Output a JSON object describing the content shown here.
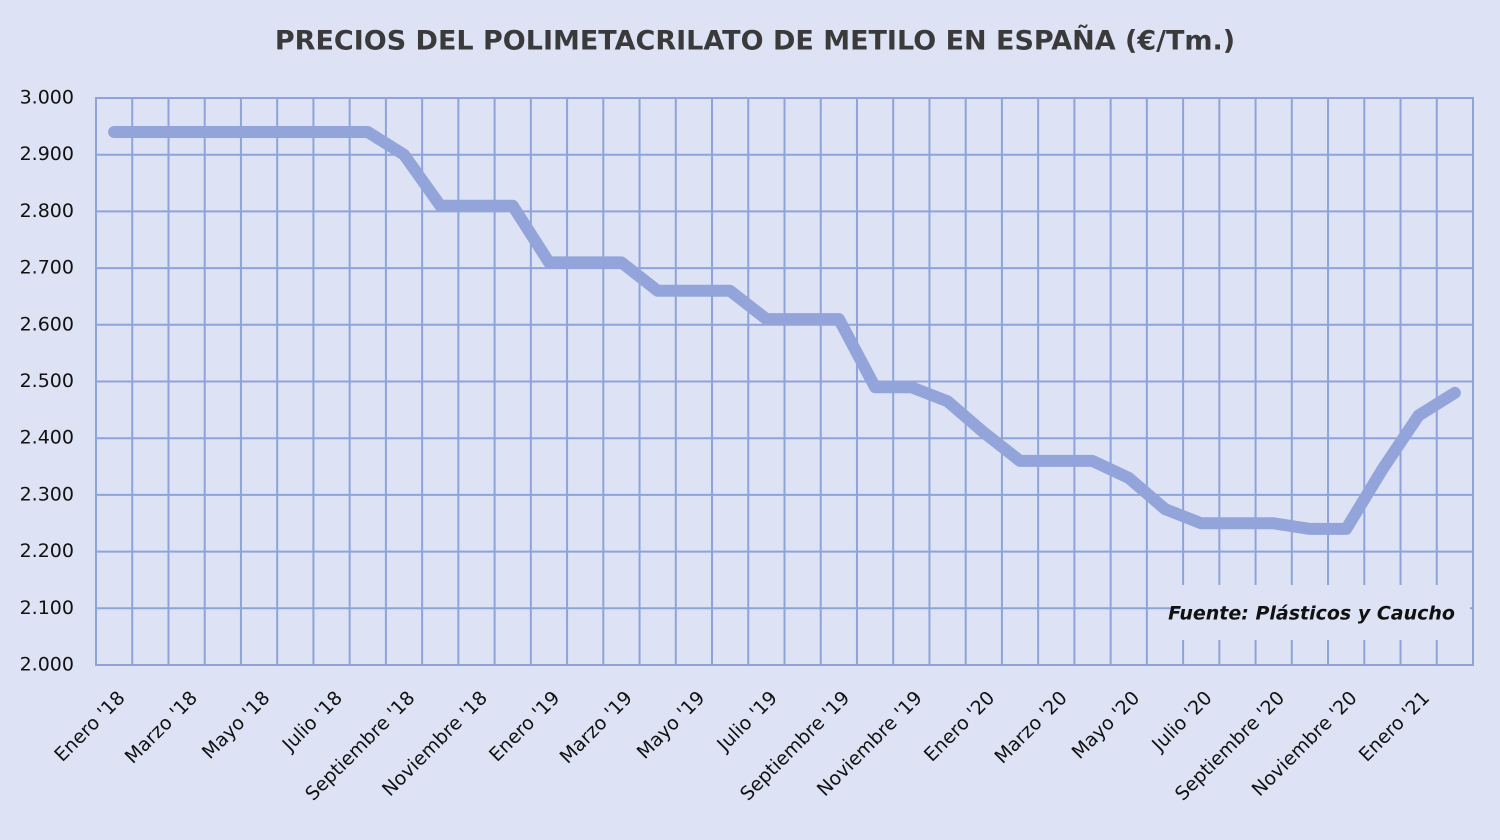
{
  "chart_data": {
    "type": "line",
    "title": "PRECIOS DEL POLIMETACRILATO DE METILO EN ESPAÑA  (€/Tm.)",
    "annotation": "Fuente: Plásticos y Caucho",
    "categories": [
      "Enero '18",
      null,
      "Marzo '18",
      null,
      "Mayo '18",
      null,
      "Julio '18",
      null,
      "Septiembre '18",
      null,
      "Noviembre '18",
      null,
      "Enero '19",
      null,
      "Marzo '19",
      null,
      "Mayo '19",
      null,
      "Julio '19",
      null,
      "Septiembre '19",
      null,
      "Noviembre '19",
      null,
      "Enero '20",
      null,
      "Marzo '20",
      null,
      "Mayo '20",
      null,
      "Julio '20",
      null,
      "Septiembre '20",
      null,
      "Noviembre '20",
      null,
      "Enero '21",
      null
    ],
    "values": [
      2940,
      2940,
      2940,
      2940,
      2940,
      2940,
      2940,
      2940,
      2900,
      2810,
      2810,
      2810,
      2710,
      2710,
      2710,
      2660,
      2660,
      2660,
      2610,
      2610,
      2610,
      2490,
      2490,
      2465,
      2410,
      2360,
      2360,
      2360,
      2330,
      2275,
      2250,
      2250,
      2250,
      2240,
      2240,
      2345,
      2440,
      2480
    ],
    "color": "#93a4da",
    "ylim": [
      2000,
      3000
    ],
    "yticks": [
      {
        "value": 2000,
        "label": "2.000"
      },
      {
        "value": 2100,
        "label": "2.100"
      },
      {
        "value": 2200,
        "label": "2.200"
      },
      {
        "value": 2300,
        "label": "2.300"
      },
      {
        "value": 2400,
        "label": "2.400"
      },
      {
        "value": 2500,
        "label": "2.500"
      },
      {
        "value": 2600,
        "label": "2.600"
      },
      {
        "value": 2700,
        "label": "2.700"
      },
      {
        "value": 2800,
        "label": "2.800"
      },
      {
        "value": 2900,
        "label": "2.900"
      },
      {
        "value": 3000,
        "label": "3.000"
      }
    ],
    "grid": true
  }
}
